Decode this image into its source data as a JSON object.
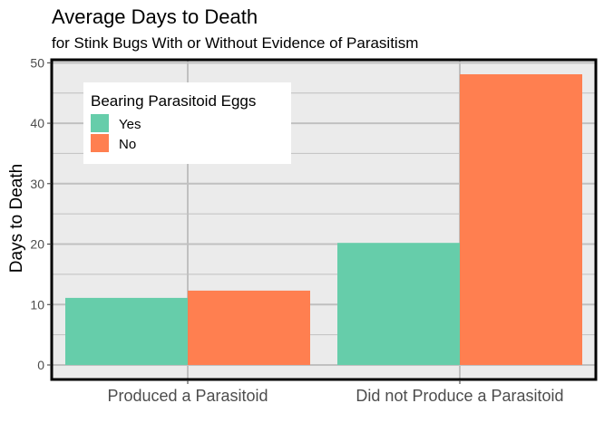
{
  "chart_data": {
    "type": "bar",
    "title": "Average Days to Death",
    "subtitle": "for Stink Bugs With or Without Evidence of Parasitism",
    "xlabel": "",
    "ylabel": "Days to Death",
    "categories": [
      "Produced a Parasitoid",
      "Did not Produce a Parasitoid"
    ],
    "series": [
      {
        "name": "Yes",
        "color": "#66cdaa",
        "values": [
          11.1,
          20.2
        ]
      },
      {
        "name": "No",
        "color": "#ff7f50",
        "values": [
          12.3,
          48.1
        ]
      }
    ],
    "ylim": [
      -2.4,
      50.5
    ],
    "yticks": [
      0,
      10,
      20,
      30,
      40,
      50
    ],
    "grid": true,
    "legend": {
      "title": "Bearing Parasitoid Eggs",
      "position": "top-left inside"
    },
    "panel_background": "#ebebeb",
    "gridline_color": "#c0c0c0"
  }
}
